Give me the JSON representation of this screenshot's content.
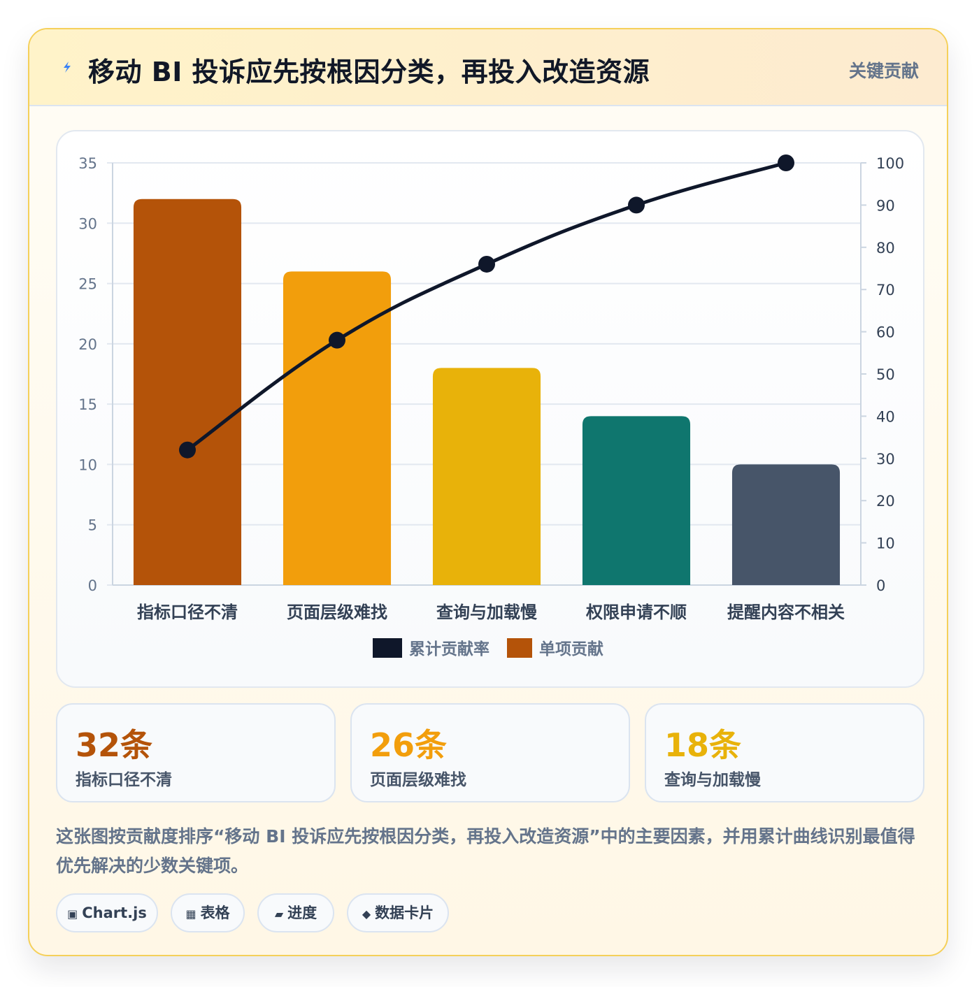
{
  "header": {
    "title": "移动 BI 投诉应先按根因分类，再投入改造资源",
    "tag": "关键贡献"
  },
  "chart_data": {
    "type": "bar",
    "categories": [
      "指标口径不清",
      "页面层级难找",
      "查询与加载慢",
      "权限申请不顺",
      "提醒内容不相关"
    ],
    "series": [
      {
        "name": "单项贡献",
        "type": "bar",
        "axis": "left",
        "values": [
          32,
          26,
          18,
          14,
          10
        ]
      },
      {
        "name": "累计贡献率",
        "type": "line",
        "axis": "right",
        "values": [
          32,
          58,
          76,
          90,
          100
        ]
      }
    ],
    "bar_colors": [
      "#b45309",
      "#f29e0c",
      "#e8b20a",
      "#0f766e",
      "#475569"
    ],
    "line_color": "#0f172a",
    "ylim_left": [
      0,
      35
    ],
    "yticks_left": [
      0,
      5,
      10,
      15,
      20,
      25,
      30,
      35
    ],
    "ylim_right": [
      0,
      100
    ],
    "yticks_right": [
      0,
      10,
      20,
      30,
      40,
      50,
      60,
      70,
      80,
      90,
      100
    ],
    "grid": true,
    "legend": "bottom-center",
    "legend_items": [
      {
        "label": "累计贡献率",
        "color": "#0f172a"
      },
      {
        "label": "单项贡献",
        "color": "#b45309"
      }
    ]
  },
  "stats": [
    {
      "value": "32条",
      "label": "指标口径不清",
      "color": "#b45309"
    },
    {
      "value": "26条",
      "label": "页面层级难找",
      "color": "#f29e0c"
    },
    {
      "value": "18条",
      "label": "查询与加载慢",
      "color": "#e8b20a"
    }
  ],
  "description": "这张图按贡献度排序“移动 BI 投诉应先按根因分类，再投入改造资源”中的主要因素，并用累计曲线识别最值得优先解决的少数关键项。",
  "chips": [
    {
      "icon": "▣",
      "label": "Chart.js"
    },
    {
      "icon": "▦",
      "label": "表格"
    },
    {
      "icon": "▰",
      "label": "进度"
    },
    {
      "icon": "◆",
      "label": "数据卡片"
    }
  ]
}
